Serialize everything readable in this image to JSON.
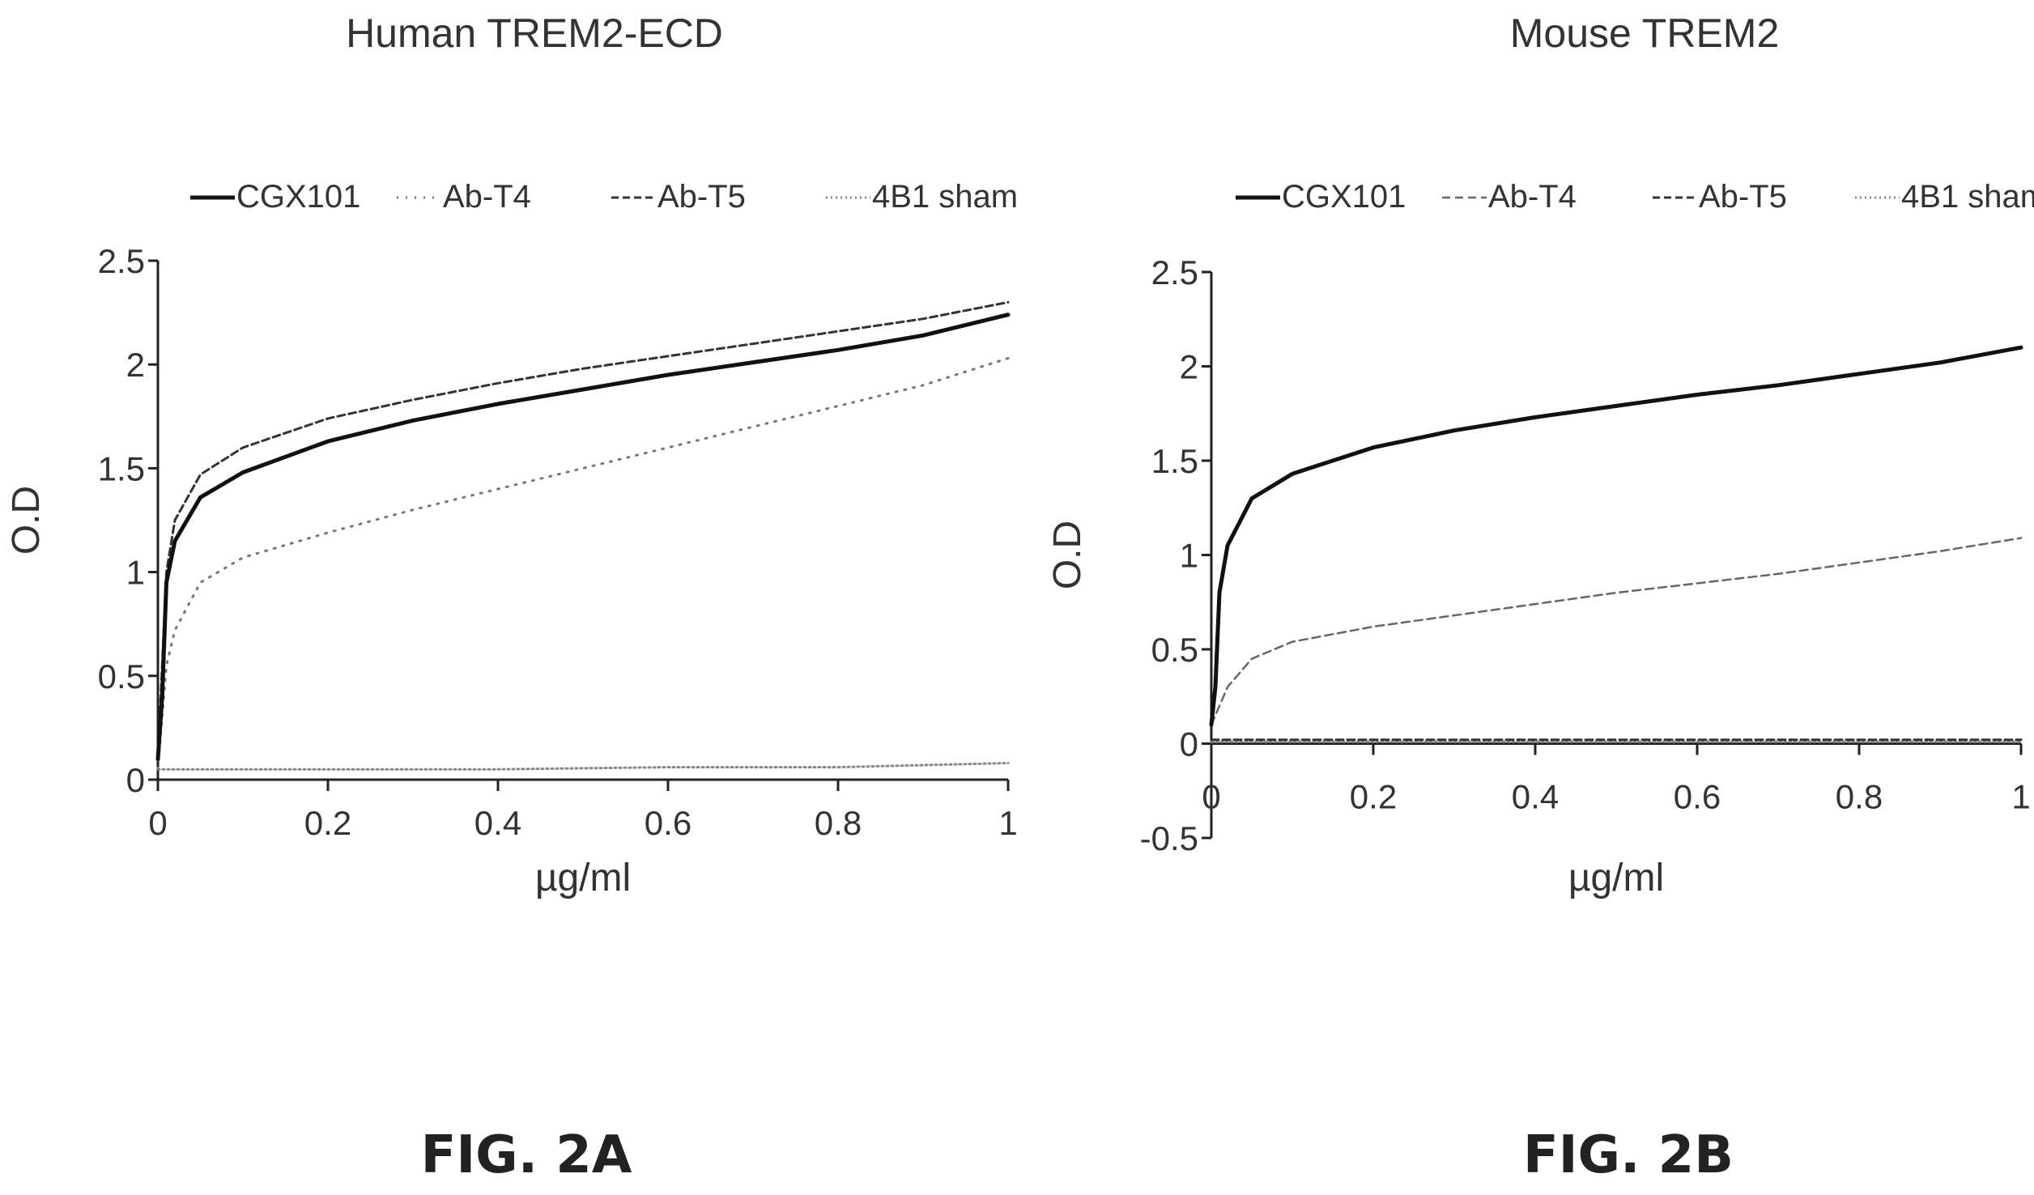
{
  "chart_data": [
    {
      "type": "line",
      "title": "Human TREM2-ECD",
      "xlabel": "µg/ml",
      "ylabel": "O.D",
      "xlim": [
        0,
        1
      ],
      "ylim": [
        0,
        2.5
      ],
      "xticks": [
        "0",
        "0.2",
        "0.4",
        "0.6",
        "0.8",
        "1"
      ],
      "yticks": [
        "0",
        "0.5",
        "1",
        "1.5",
        "2",
        "2.5"
      ],
      "legend_position": "top",
      "figure_label": "FIG. 2A",
      "series": [
        {
          "name": "CGX101",
          "style": "solid",
          "x": [
            0,
            0.005,
            0.01,
            0.02,
            0.05,
            0.1,
            0.2,
            0.3,
            0.4,
            0.5,
            0.6,
            0.7,
            0.8,
            0.9,
            1.0
          ],
          "y": [
            0.1,
            0.4,
            0.95,
            1.15,
            1.36,
            1.48,
            1.63,
            1.73,
            1.81,
            1.88,
            1.95,
            2.01,
            2.07,
            2.14,
            2.24
          ]
        },
        {
          "name": "Ab-T4",
          "style": "dotted",
          "x": [
            0,
            0.005,
            0.01,
            0.02,
            0.05,
            0.1,
            0.2,
            0.3,
            0.4,
            0.5,
            0.6,
            0.7,
            0.8,
            0.9,
            1.0
          ],
          "y": [
            0.05,
            0.3,
            0.55,
            0.72,
            0.95,
            1.07,
            1.19,
            1.3,
            1.4,
            1.5,
            1.6,
            1.7,
            1.8,
            1.9,
            2.03
          ]
        },
        {
          "name": "Ab-T5",
          "style": "dashed",
          "x": [
            0,
            0.005,
            0.01,
            0.02,
            0.05,
            0.1,
            0.2,
            0.3,
            0.4,
            0.5,
            0.6,
            0.7,
            0.8,
            0.9,
            1.0
          ],
          "y": [
            0.1,
            0.55,
            1.0,
            1.25,
            1.47,
            1.6,
            1.74,
            1.83,
            1.91,
            1.98,
            2.04,
            2.1,
            2.16,
            2.22,
            2.3
          ]
        },
        {
          "name": "4B1 sham",
          "style": "dotted-fine",
          "x": [
            0,
            0.2,
            0.4,
            0.6,
            0.8,
            1.0
          ],
          "y": [
            0.05,
            0.05,
            0.05,
            0.06,
            0.06,
            0.08
          ]
        }
      ]
    },
    {
      "type": "line",
      "title": "Mouse TREM2",
      "xlabel": "µg/ml",
      "ylabel": "O.D",
      "xlim": [
        0,
        1
      ],
      "ylim": [
        -0.5,
        2.5
      ],
      "xticks": [
        "0",
        "0.2",
        "0.4",
        "0.6",
        "0.8",
        "1"
      ],
      "yticks": [
        "-0.5",
        "0",
        "0.5",
        "1",
        "1.5",
        "2",
        "2.5"
      ],
      "legend_position": "top",
      "figure_label": "FIG. 2B",
      "series": [
        {
          "name": "CGX101",
          "style": "solid",
          "x": [
            0,
            0.005,
            0.01,
            0.02,
            0.05,
            0.1,
            0.2,
            0.3,
            0.4,
            0.5,
            0.6,
            0.7,
            0.8,
            0.9,
            1.0
          ],
          "y": [
            0.1,
            0.3,
            0.8,
            1.05,
            1.3,
            1.43,
            1.57,
            1.66,
            1.73,
            1.79,
            1.85,
            1.9,
            1.96,
            2.02,
            2.1
          ]
        },
        {
          "name": "Ab-T4",
          "style": "dashed-light",
          "x": [
            0,
            0.01,
            0.02,
            0.05,
            0.1,
            0.2,
            0.3,
            0.4,
            0.5,
            0.6,
            0.7,
            0.8,
            0.9,
            1.0
          ],
          "y": [
            0.1,
            0.2,
            0.3,
            0.45,
            0.54,
            0.62,
            0.68,
            0.74,
            0.8,
            0.85,
            0.9,
            0.96,
            1.02,
            1.09
          ]
        },
        {
          "name": "Ab-T5",
          "style": "dashed",
          "x": [
            0,
            0.2,
            0.4,
            0.6,
            0.8,
            1.0
          ],
          "y": [
            0.02,
            0.02,
            0.02,
            0.02,
            0.02,
            0.02
          ]
        },
        {
          "name": "4B1 sham",
          "style": "dotted-fine",
          "x": [
            0,
            0.2,
            0.4,
            0.6,
            0.8,
            1.0
          ],
          "y": [
            0.01,
            0.01,
            0.01,
            0.01,
            0.01,
            0.01
          ]
        }
      ]
    }
  ]
}
